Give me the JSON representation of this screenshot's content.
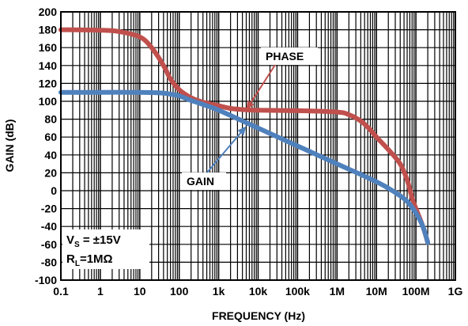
{
  "chart_data": {
    "type": "line",
    "xlabel": "FREQUENCY (Hz)",
    "ylabel": "GAIN (dB)",
    "x_scale": "log",
    "xlim": [
      0.1,
      1000000000
    ],
    "ylim": [
      -100,
      200
    ],
    "grid": true,
    "x_ticks": [
      {
        "value": 0.1,
        "label": "0.1"
      },
      {
        "value": 1,
        "label": "1"
      },
      {
        "value": 10,
        "label": "10"
      },
      {
        "value": 100,
        "label": "100"
      },
      {
        "value": 1000,
        "label": "1k"
      },
      {
        "value": 10000,
        "label": "10k"
      },
      {
        "value": 100000,
        "label": "100k"
      },
      {
        "value": 1000000,
        "label": "1M"
      },
      {
        "value": 10000000,
        "label": "10M"
      },
      {
        "value": 100000000,
        "label": "100M"
      },
      {
        "value": 1000000000,
        "label": "1G"
      }
    ],
    "y_ticks": [
      200,
      180,
      160,
      140,
      120,
      100,
      80,
      60,
      40,
      20,
      0,
      -20,
      -40,
      -60,
      -80,
      -100
    ],
    "series": [
      {
        "name": "PHASE",
        "color": "#c0504d",
        "points": [
          [
            0.1,
            180
          ],
          [
            1,
            179.5
          ],
          [
            3,
            178
          ],
          [
            10,
            172
          ],
          [
            20,
            160
          ],
          [
            40,
            140
          ],
          [
            60,
            125
          ],
          [
            100,
            113
          ],
          [
            200,
            104
          ],
          [
            400,
            99
          ],
          [
            1000,
            95
          ],
          [
            2000,
            92
          ],
          [
            5000,
            90.5
          ],
          [
            10000,
            90
          ],
          [
            100000,
            89.5
          ],
          [
            1000000,
            88
          ],
          [
            2000000,
            85
          ],
          [
            4000000,
            78
          ],
          [
            7000000,
            68
          ],
          [
            10000000,
            60
          ],
          [
            20000000,
            46
          ],
          [
            40000000,
            30
          ],
          [
            60000000,
            12
          ],
          [
            80000000,
            -8
          ],
          [
            100000000,
            -20
          ],
          [
            150000000,
            -40
          ],
          [
            200000000,
            -58
          ]
        ]
      },
      {
        "name": "GAIN",
        "color": "#4f81bd",
        "points": [
          [
            0.1,
            110
          ],
          [
            1,
            110
          ],
          [
            10,
            110
          ],
          [
            30,
            109.5
          ],
          [
            60,
            108
          ],
          [
            100,
            106
          ],
          [
            200,
            101
          ],
          [
            500,
            95
          ],
          [
            1000,
            90
          ],
          [
            10000,
            70
          ],
          [
            100000,
            50
          ],
          [
            1000000,
            30
          ],
          [
            10000000,
            10
          ],
          [
            30000000,
            -2
          ],
          [
            60000000,
            -12
          ],
          [
            100000000,
            -25
          ],
          [
            150000000,
            -40
          ],
          [
            200000000,
            -58
          ]
        ]
      }
    ],
    "annotations": [
      {
        "text": "PHASE",
        "target": [
          5000,
          90.5
        ],
        "color": "#c0504d"
      },
      {
        "text": "GAIN",
        "target": [
          5000,
          72
        ],
        "color": "#4f81bd"
      }
    ],
    "conditions": {
      "vs": {
        "sym": "V",
        "sub": "S",
        "rest": " = ±15V"
      },
      "rl": {
        "sym": "R",
        "sub": "L",
        "rest": "=1MΩ"
      }
    }
  }
}
